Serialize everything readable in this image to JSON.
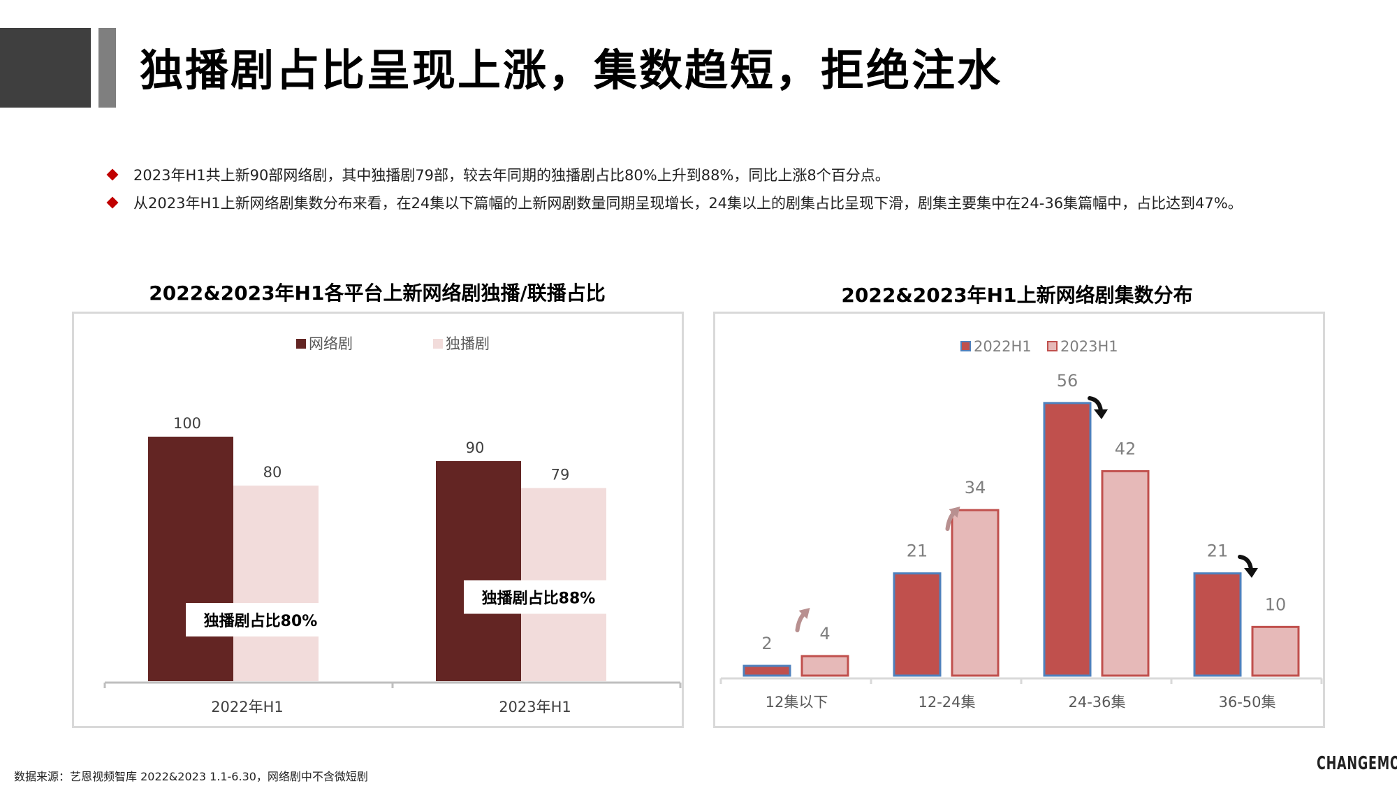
{
  "header": {
    "title": "独播剧占比呈现上涨，集数趋短，拒绝注水"
  },
  "bullets": [
    "2023年H1共上新90部网络剧，其中独播剧79部，较去年同期的独播剧占比80%上升到88%，同比上涨8个百分点。",
    "从2023年H1上新网络剧集数分布来看，在24集以下篇幅的上新网剧数量同期呈现增长，24集以上的剧集占比呈现下滑，剧集主要集中在24-36集篇幅中，占比达到47%。"
  ],
  "footer": {
    "source": "数据来源：艺恩视频智库    2022&2023  1.1-6.30，网络剧中不含微短剧",
    "logo": "CHANGEMO"
  },
  "chart_data": [
    {
      "type": "bar",
      "title": "2022&2023年H1各平台上新网络剧独播/联播占比",
      "categories": [
        "2022年H1",
        "2023年H1"
      ],
      "series": [
        {
          "name": "网络剧",
          "values": [
            100,
            90
          ],
          "color": "#632523"
        },
        {
          "name": "独播剧",
          "values": [
            80,
            79
          ],
          "color": "#f2dcdb"
        }
      ],
      "annotations": [
        "独播剧占比80%",
        "独播剧占比88%"
      ],
      "legend": "top-center",
      "ylim": [
        0,
        120
      ],
      "grid": false
    },
    {
      "type": "bar",
      "title": "2022&2023年H1上新网络剧集数分布",
      "categories": [
        "12集以下",
        "12-24集",
        "24-36集",
        "36-50集"
      ],
      "series": [
        {
          "name": "2022H1",
          "values": [
            2,
            21,
            56,
            21
          ],
          "color": "#c0504d",
          "stroke": "#4f81bd"
        },
        {
          "name": "2023H1",
          "values": [
            4,
            34,
            42,
            10
          ],
          "color": "#e6b9b8",
          "stroke": "#c0504d"
        }
      ],
      "trend_arrows": [
        "up",
        "up",
        "down",
        "down"
      ],
      "legend": "top-center",
      "ylim": [
        0,
        60
      ],
      "grid": false
    }
  ]
}
